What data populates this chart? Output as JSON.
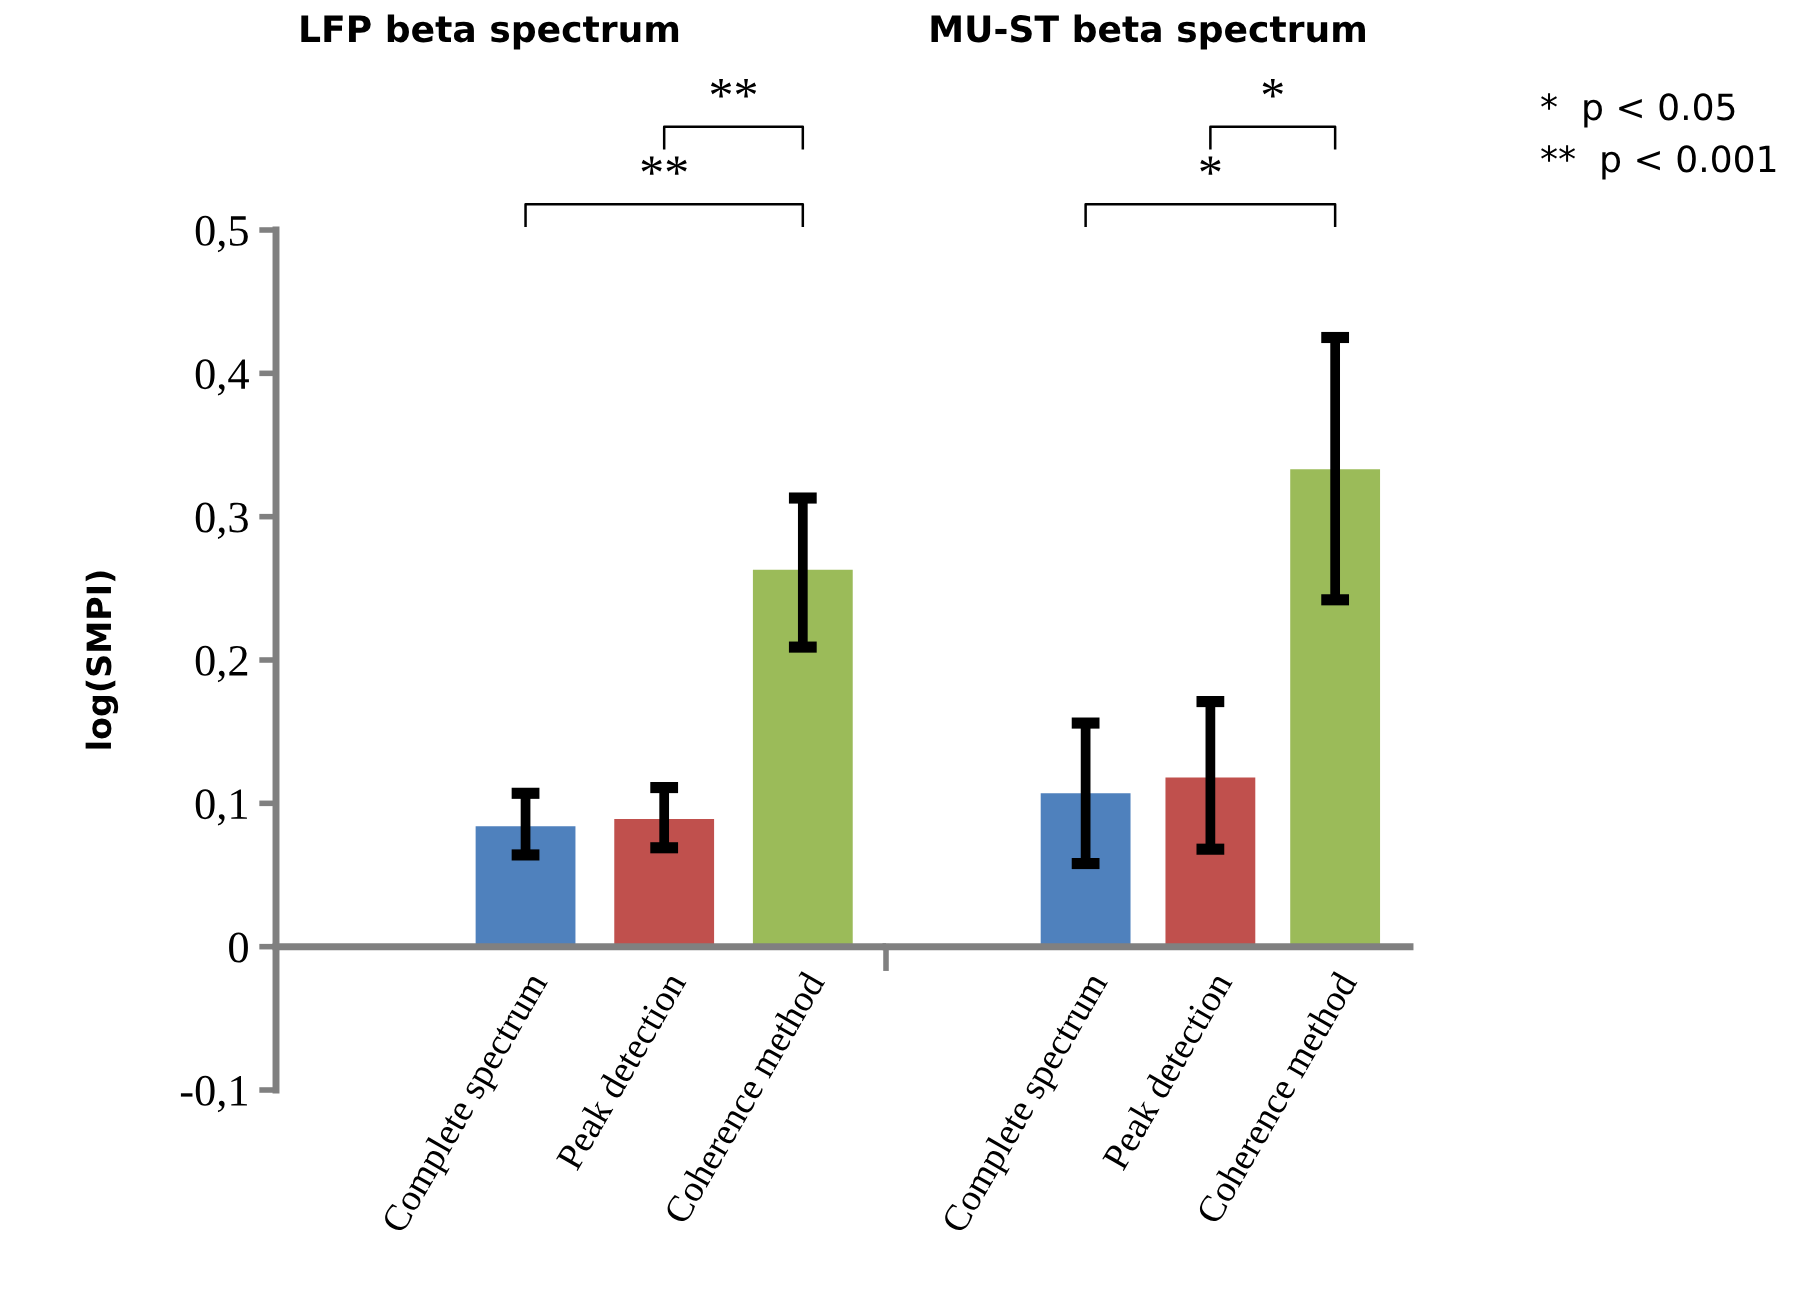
{
  "chart_data": [
    {
      "type": "bar",
      "title": "LFP beta spectrum",
      "ylabel": "log(SMPI)",
      "categories": [
        "Complete spectrum",
        "Peak detection",
        "Coherence method"
      ],
      "values": [
        0.084,
        0.089,
        0.263
      ],
      "colors": [
        "#4f81bd",
        "#c0504d",
        "#9bbb59"
      ],
      "errors": [
        [
          0.064,
          0.107
        ],
        [
          0.069,
          0.111
        ],
        [
          0.209,
          0.313
        ]
      ],
      "ylim": [
        -0.1,
        0.5
      ],
      "yticks": [
        {
          "value": -0.1,
          "label": "-0,1"
        },
        0,
        {
          "value": 0.1,
          "label": "0,1"
        },
        {
          "value": 0.2,
          "label": "0,2"
        },
        {
          "value": 0.3,
          "label": "0,3"
        },
        {
          "value": 0.4,
          "label": "0,4"
        },
        {
          "value": 0.5,
          "label": "0,5"
        }
      ],
      "annotations": [
        "**",
        "**"
      ]
    },
    {
      "type": "bar",
      "title": "MU-ST beta spectrum",
      "categories": [
        "Complete spectrum",
        "Peak detection",
        "Coherence method"
      ],
      "values": [
        0.107,
        0.118,
        0.333
      ],
      "colors": [
        "#4f81bd",
        "#c0504d",
        "#9bbb59"
      ],
      "errors": [
        [
          0.058,
          0.156
        ],
        [
          0.068,
          0.171
        ],
        [
          0.242,
          0.425
        ]
      ],
      "ylim": [
        -0.1,
        0.5
      ],
      "tick_labels": "x",
      "annotations": [
        "*",
        "*",
        "*  p < 0.05",
        "**  p < 0.001"
      ]
    }
  ]
}
